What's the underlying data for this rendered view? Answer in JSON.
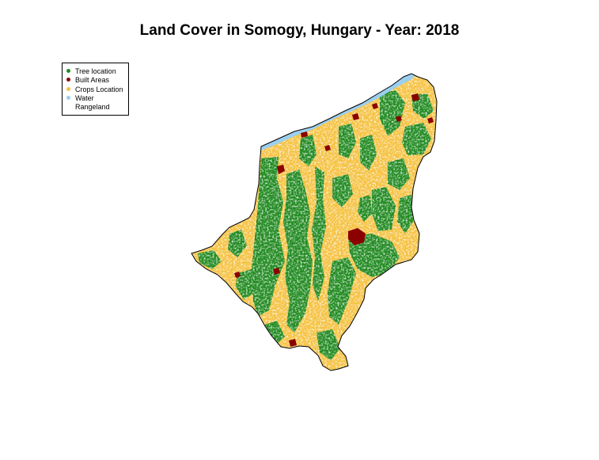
{
  "title": "Land Cover in Somogy, Hungary - Year: 2018",
  "legend": {
    "items": [
      {
        "label": "Tree location",
        "color": "#228B22"
      },
      {
        "label": "Built Areas",
        "color": "#8B0000"
      },
      {
        "label": "Crops Location",
        "color": "#F5C242"
      },
      {
        "label": "Water",
        "color": "#9BCFF0"
      },
      {
        "label": "Rangeland",
        "color": "#FFFFFF"
      }
    ]
  },
  "map": {
    "region": "Somogy",
    "country": "Hungary",
    "year": 2018,
    "outline_color": "#000000",
    "background_color": "#FFFFFF"
  }
}
